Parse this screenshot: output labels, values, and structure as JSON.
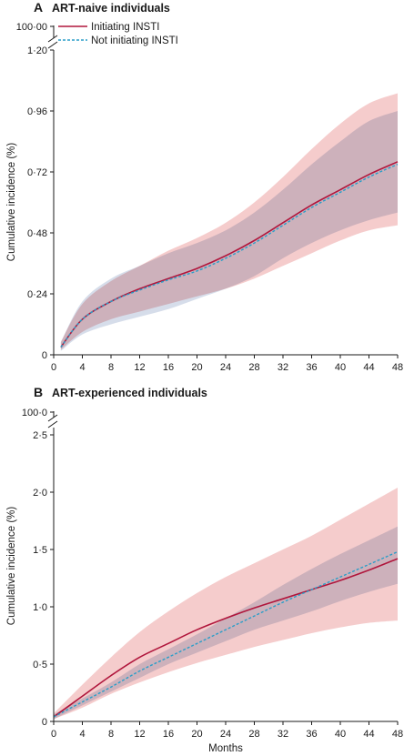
{
  "figure": {
    "xlabel": "Months"
  },
  "legend": {
    "series_a": {
      "label": "Initiating INSTI",
      "color": "#b0163c",
      "style": "solid"
    },
    "series_b": {
      "label": "Not initiating INSTI",
      "color": "#2a9ec8",
      "style": "dashed"
    }
  },
  "chart_data": [
    {
      "type": "line",
      "panel_letter": "A",
      "title": "ART-naive individuals",
      "ylabel": "Cumulative incidence (%)",
      "xlabel": "",
      "xlim": [
        0,
        48
      ],
      "ylim": [
        0,
        1.2
      ],
      "axis_break": true,
      "break_top_label": "100·00",
      "x_ticks": [
        0,
        4,
        8,
        12,
        16,
        20,
        24,
        28,
        32,
        36,
        40,
        44,
        48
      ],
      "y_ticks": [
        0,
        0.24,
        0.48,
        0.72,
        0.96,
        1.2
      ],
      "y_tick_labels": [
        "0",
        "0·24",
        "0·48",
        "0·72",
        "0·96",
        "1·20"
      ],
      "legend_position": "top-left",
      "x": [
        1,
        4,
        8,
        12,
        16,
        20,
        24,
        28,
        32,
        36,
        40,
        44,
        48
      ],
      "series": [
        {
          "name": "Initiating INSTI",
          "color": "#b0163c",
          "values": [
            0.03,
            0.14,
            0.21,
            0.26,
            0.3,
            0.34,
            0.39,
            0.45,
            0.52,
            0.59,
            0.65,
            0.71,
            0.76
          ],
          "ci_lower": [
            0.02,
            0.09,
            0.14,
            0.17,
            0.2,
            0.23,
            0.26,
            0.3,
            0.35,
            0.4,
            0.45,
            0.49,
            0.51
          ],
          "ci_upper": [
            0.05,
            0.2,
            0.29,
            0.35,
            0.41,
            0.46,
            0.52,
            0.6,
            0.7,
            0.81,
            0.91,
            0.99,
            1.03
          ],
          "ci_color": "#f4c7c6"
        },
        {
          "name": "Not initiating INSTI",
          "color": "#2a9ec8",
          "values": [
            0.03,
            0.14,
            0.21,
            0.255,
            0.295,
            0.33,
            0.38,
            0.44,
            0.51,
            0.58,
            0.64,
            0.7,
            0.75
          ],
          "ci_lower": [
            0.015,
            0.08,
            0.12,
            0.15,
            0.18,
            0.22,
            0.26,
            0.31,
            0.38,
            0.44,
            0.49,
            0.53,
            0.56
          ],
          "ci_upper": [
            0.05,
            0.21,
            0.3,
            0.35,
            0.4,
            0.44,
            0.49,
            0.56,
            0.65,
            0.75,
            0.84,
            0.92,
            0.96
          ],
          "ci_color": "#c8d2e3"
        }
      ]
    },
    {
      "type": "line",
      "panel_letter": "B",
      "title": "ART-experienced individuals",
      "ylabel": "Cumulative incidence (%)",
      "xlabel": "Months",
      "xlim": [
        0,
        48
      ],
      "ylim": [
        0,
        2.5
      ],
      "axis_break": true,
      "break_top_label": "100·0",
      "x_ticks": [
        0,
        4,
        8,
        12,
        16,
        20,
        24,
        28,
        32,
        36,
        40,
        44,
        48
      ],
      "y_ticks": [
        0,
        0.5,
        1.0,
        1.5,
        2.0,
        2.5
      ],
      "y_tick_labels": [
        "0",
        "0·5",
        "1·0",
        "1·5",
        "2·0",
        "2·5"
      ],
      "x": [
        0,
        4,
        8,
        12,
        16,
        20,
        24,
        28,
        32,
        36,
        40,
        44,
        48
      ],
      "series": [
        {
          "name": "Initiating INSTI",
          "color": "#b0163c",
          "values": [
            0.04,
            0.22,
            0.4,
            0.56,
            0.68,
            0.8,
            0.9,
            0.99,
            1.07,
            1.15,
            1.23,
            1.32,
            1.42
          ],
          "ci_lower": [
            0.02,
            0.12,
            0.24,
            0.34,
            0.43,
            0.51,
            0.58,
            0.65,
            0.71,
            0.77,
            0.82,
            0.86,
            0.88
          ],
          "ci_upper": [
            0.07,
            0.32,
            0.56,
            0.78,
            0.96,
            1.12,
            1.26,
            1.38,
            1.5,
            1.62,
            1.76,
            1.9,
            2.04
          ],
          "ci_color": "#f4c7c6"
        },
        {
          "name": "Not initiating INSTI",
          "color": "#2a9ec8",
          "values": [
            0.04,
            0.17,
            0.3,
            0.44,
            0.56,
            0.68,
            0.8,
            0.92,
            1.04,
            1.15,
            1.26,
            1.37,
            1.48
          ],
          "ci_lower": [
            0.02,
            0.14,
            0.26,
            0.38,
            0.5,
            0.6,
            0.7,
            0.8,
            0.88,
            0.96,
            1.05,
            1.13,
            1.2
          ],
          "ci_upper": [
            0.06,
            0.2,
            0.34,
            0.5,
            0.63,
            0.76,
            0.9,
            1.04,
            1.19,
            1.33,
            1.46,
            1.58,
            1.7
          ],
          "ci_color": "#c8d2e3"
        }
      ]
    }
  ]
}
